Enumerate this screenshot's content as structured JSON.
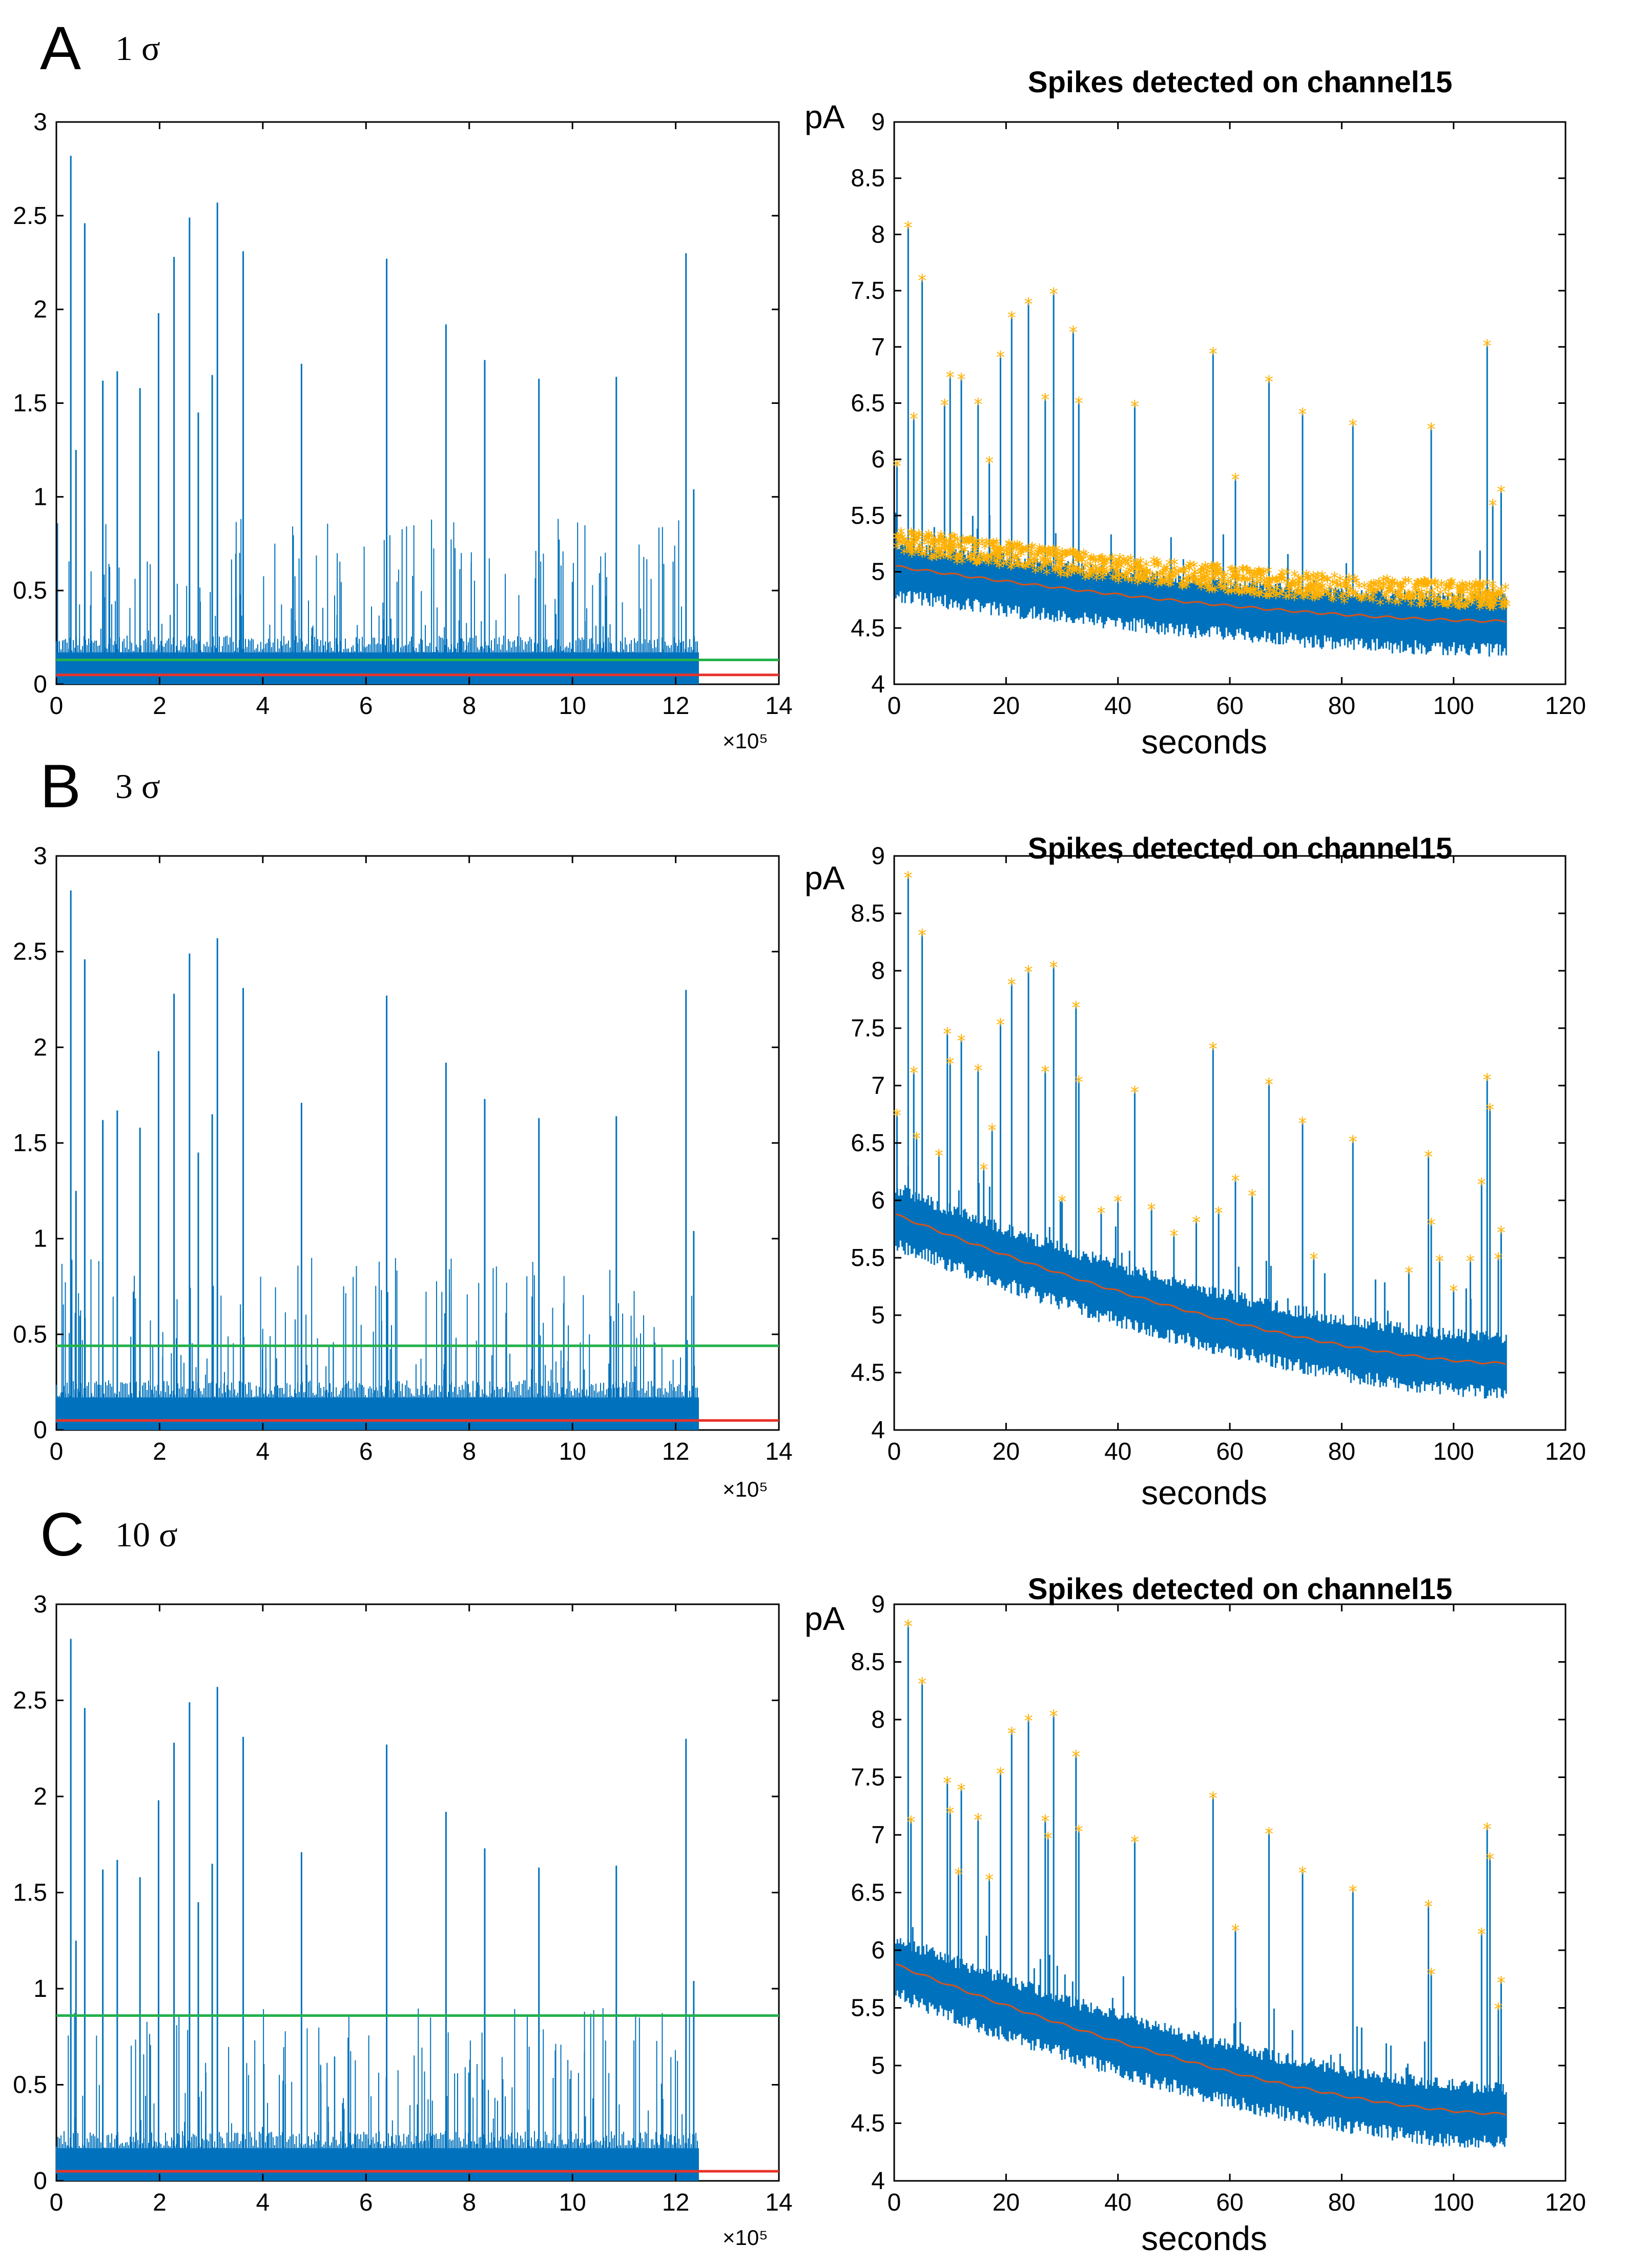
{
  "colors": {
    "trace": "#0072bd",
    "threshold": "#22b14c",
    "noise_level": "#e8322a",
    "trend": "#d95319",
    "spike_marker": "#ffb000"
  },
  "chart_data": [
    {
      "panel": "A",
      "panel_letter": "A",
      "sigma_label": "1 σ",
      "left": {
        "type": "line",
        "xlim": [
          0,
          14
        ],
        "ylim": [
          0,
          3
        ],
        "x_ticks": [
          "0",
          "2",
          "4",
          "6",
          "8",
          "10",
          "12",
          "14"
        ],
        "y_ticks": [
          "0",
          "0.5",
          "1",
          "1.5",
          "2",
          "2.5",
          "3"
        ],
        "x_exponent_label": "×10⁵",
        "signal_end_x": 12.45,
        "baseline_band": [
          0.0,
          0.17
        ],
        "threshold": 0.13,
        "noise_level": 0.05,
        "spike_peaks": [
          {
            "x": 0.28,
            "y": 2.82
          },
          {
            "x": 0.38,
            "y": 1.25
          },
          {
            "x": 0.55,
            "y": 2.46
          },
          {
            "x": 0.9,
            "y": 1.62
          },
          {
            "x": 1.18,
            "y": 1.67
          },
          {
            "x": 1.62,
            "y": 1.58
          },
          {
            "x": 1.98,
            "y": 1.98
          },
          {
            "x": 2.28,
            "y": 2.28
          },
          {
            "x": 2.58,
            "y": 2.49
          },
          {
            "x": 2.75,
            "y": 1.45
          },
          {
            "x": 3.02,
            "y": 1.65
          },
          {
            "x": 3.12,
            "y": 2.57
          },
          {
            "x": 3.62,
            "y": 2.31
          },
          {
            "x": 4.75,
            "y": 1.71
          },
          {
            "x": 6.4,
            "y": 2.27
          },
          {
            "x": 7.55,
            "y": 1.92
          },
          {
            "x": 8.3,
            "y": 1.73
          },
          {
            "x": 9.35,
            "y": 1.63
          },
          {
            "x": 10.85,
            "y": 1.64
          },
          {
            "x": 12.2,
            "y": 2.3
          },
          {
            "x": 12.35,
            "y": 1.04
          }
        ]
      },
      "right": {
        "type": "line",
        "title": "Spikes detected on channel15",
        "ylabel": "pA",
        "xlabel": "seconds",
        "xlim": [
          0,
          120
        ],
        "ylim": [
          4,
          9
        ],
        "x_ticks": [
          "0",
          "20",
          "40",
          "60",
          "80",
          "100",
          "120"
        ],
        "y_ticks": [
          "4",
          "4.5",
          "5",
          "5.5",
          "6",
          "6.5",
          "7",
          "7.5",
          "8",
          "8.5",
          "9"
        ],
        "signal_end_x": 109.5,
        "trend_start": 5.05,
        "trend_end": 4.56,
        "band_below": 0.32,
        "band_above": 0.25,
        "detected_spikes": [
          {
            "x": 0.5,
            "y": 5.95
          },
          {
            "x": 2.5,
            "y": 8.07
          },
          {
            "x": 3.5,
            "y": 6.37
          },
          {
            "x": 5.0,
            "y": 7.6
          },
          {
            "x": 9.0,
            "y": 6.49
          },
          {
            "x": 10.0,
            "y": 6.74
          },
          {
            "x": 12.0,
            "y": 6.72
          },
          {
            "x": 15.0,
            "y": 6.5
          },
          {
            "x": 17.0,
            "y": 5.98
          },
          {
            "x": 19.0,
            "y": 6.92
          },
          {
            "x": 21.0,
            "y": 7.27
          },
          {
            "x": 24.0,
            "y": 7.39
          },
          {
            "x": 27.0,
            "y": 6.54
          },
          {
            "x": 28.5,
            "y": 7.48
          },
          {
            "x": 32.0,
            "y": 7.14
          },
          {
            "x": 33.0,
            "y": 6.51
          },
          {
            "x": 43.0,
            "y": 6.48
          },
          {
            "x": 57.0,
            "y": 6.95
          },
          {
            "x": 61.0,
            "y": 5.83
          },
          {
            "x": 67.0,
            "y": 6.7
          },
          {
            "x": 73.0,
            "y": 6.41
          },
          {
            "x": 82.0,
            "y": 6.31
          },
          {
            "x": 96.0,
            "y": 6.28
          },
          {
            "x": 106.0,
            "y": 7.02
          },
          {
            "x": 107.0,
            "y": 5.6
          },
          {
            "x": 108.5,
            "y": 5.72
          }
        ]
      }
    },
    {
      "panel": "B",
      "panel_letter": "B",
      "sigma_label": "3 σ",
      "left": {
        "type": "line",
        "xlim": [
          0,
          14
        ],
        "ylim": [
          0,
          3
        ],
        "x_ticks": [
          "0",
          "2",
          "4",
          "6",
          "8",
          "10",
          "12",
          "14"
        ],
        "y_ticks": [
          "0",
          "0.5",
          "1",
          "1.5",
          "2",
          "2.5",
          "3"
        ],
        "x_exponent_label": "×10⁵",
        "signal_end_x": 12.45,
        "baseline_band": [
          0.0,
          0.17
        ],
        "threshold": 0.44,
        "noise_level": 0.05,
        "spike_peaks": [
          {
            "x": 0.28,
            "y": 2.82
          },
          {
            "x": 0.38,
            "y": 1.25
          },
          {
            "x": 0.55,
            "y": 2.46
          },
          {
            "x": 0.9,
            "y": 1.62
          },
          {
            "x": 1.18,
            "y": 1.67
          },
          {
            "x": 1.62,
            "y": 1.58
          },
          {
            "x": 1.98,
            "y": 1.98
          },
          {
            "x": 2.28,
            "y": 2.28
          },
          {
            "x": 2.58,
            "y": 2.49
          },
          {
            "x": 2.75,
            "y": 1.45
          },
          {
            "x": 3.02,
            "y": 1.65
          },
          {
            "x": 3.12,
            "y": 2.57
          },
          {
            "x": 3.62,
            "y": 2.31
          },
          {
            "x": 4.75,
            "y": 1.71
          },
          {
            "x": 6.4,
            "y": 2.27
          },
          {
            "x": 7.55,
            "y": 1.92
          },
          {
            "x": 8.3,
            "y": 1.73
          },
          {
            "x": 9.35,
            "y": 1.63
          },
          {
            "x": 10.85,
            "y": 1.64
          },
          {
            "x": 12.2,
            "y": 2.3
          },
          {
            "x": 12.35,
            "y": 1.04
          }
        ]
      },
      "right": {
        "type": "line",
        "title": "Spikes detected on channel15",
        "ylabel": "pA",
        "xlabel": "seconds",
        "xlim": [
          0,
          120
        ],
        "ylim": [
          4,
          9
        ],
        "x_ticks": [
          "0",
          "20",
          "40",
          "60",
          "80",
          "100",
          "120"
        ],
        "y_ticks": [
          "4",
          "4.5",
          "5",
          "5.5",
          "6",
          "6.5",
          "7",
          "7.5",
          "8",
          "8.5",
          "9"
        ],
        "signal_end_x": 109.5,
        "trend_start": 5.88,
        "trend_end": 4.58,
        "band_below": 0.32,
        "band_above": 0.28,
        "detected_spikes": [
          {
            "x": 0.5,
            "y": 6.75
          },
          {
            "x": 2.5,
            "y": 8.82
          },
          {
            "x": 3.5,
            "y": 7.12
          },
          {
            "x": 4.0,
            "y": 6.55
          },
          {
            "x": 5.0,
            "y": 8.32
          },
          {
            "x": 8.0,
            "y": 6.4
          },
          {
            "x": 9.5,
            "y": 7.46
          },
          {
            "x": 10.0,
            "y": 7.2
          },
          {
            "x": 12.0,
            "y": 7.4
          },
          {
            "x": 15.0,
            "y": 7.14
          },
          {
            "x": 16.0,
            "y": 6.28
          },
          {
            "x": 17.5,
            "y": 6.62
          },
          {
            "x": 19.0,
            "y": 7.54
          },
          {
            "x": 21.0,
            "y": 7.89
          },
          {
            "x": 24.0,
            "y": 8.0
          },
          {
            "x": 27.0,
            "y": 7.13
          },
          {
            "x": 28.5,
            "y": 8.04
          },
          {
            "x": 30.0,
            "y": 6.0
          },
          {
            "x": 32.5,
            "y": 7.69
          },
          {
            "x": 33.0,
            "y": 7.04
          },
          {
            "x": 37.0,
            "y": 5.9
          },
          {
            "x": 40.0,
            "y": 6.0
          },
          {
            "x": 43.0,
            "y": 6.95
          },
          {
            "x": 46.0,
            "y": 5.93
          },
          {
            "x": 50.0,
            "y": 5.7
          },
          {
            "x": 54.0,
            "y": 5.82
          },
          {
            "x": 57.0,
            "y": 7.33
          },
          {
            "x": 58.0,
            "y": 5.9
          },
          {
            "x": 61.0,
            "y": 6.18
          },
          {
            "x": 64.0,
            "y": 6.05
          },
          {
            "x": 67.0,
            "y": 7.02
          },
          {
            "x": 73.0,
            "y": 6.68
          },
          {
            "x": 75.0,
            "y": 5.5
          },
          {
            "x": 82.0,
            "y": 6.52
          },
          {
            "x": 92.0,
            "y": 5.38
          },
          {
            "x": 95.5,
            "y": 6.39
          },
          {
            "x": 96.0,
            "y": 5.8
          },
          {
            "x": 97.5,
            "y": 5.48
          },
          {
            "x": 100.0,
            "y": 5.22
          },
          {
            "x": 103.0,
            "y": 5.48
          },
          {
            "x": 105.0,
            "y": 6.15
          },
          {
            "x": 106.0,
            "y": 7.06
          },
          {
            "x": 106.5,
            "y": 6.8
          },
          {
            "x": 108.0,
            "y": 5.5
          },
          {
            "x": 108.5,
            "y": 5.73
          }
        ]
      }
    },
    {
      "panel": "C",
      "panel_letter": "C",
      "sigma_label": "10 σ",
      "left": {
        "type": "line",
        "xlim": [
          0,
          14
        ],
        "ylim": [
          0,
          3
        ],
        "x_ticks": [
          "0",
          "2",
          "4",
          "6",
          "8",
          "10",
          "12",
          "14"
        ],
        "y_ticks": [
          "0",
          "0.5",
          "1",
          "1.5",
          "2",
          "2.5",
          "3"
        ],
        "x_exponent_label": "×10⁵",
        "signal_end_x": 12.45,
        "baseline_band": [
          0.0,
          0.17
        ],
        "threshold": 0.86,
        "noise_level": 0.05,
        "spike_peaks": [
          {
            "x": 0.28,
            "y": 2.82
          },
          {
            "x": 0.38,
            "y": 1.25
          },
          {
            "x": 0.55,
            "y": 2.46
          },
          {
            "x": 0.9,
            "y": 1.62
          },
          {
            "x": 1.18,
            "y": 1.67
          },
          {
            "x": 1.62,
            "y": 1.58
          },
          {
            "x": 1.98,
            "y": 1.98
          },
          {
            "x": 2.28,
            "y": 2.28
          },
          {
            "x": 2.58,
            "y": 2.49
          },
          {
            "x": 2.75,
            "y": 1.45
          },
          {
            "x": 3.02,
            "y": 1.65
          },
          {
            "x": 3.12,
            "y": 2.57
          },
          {
            "x": 3.62,
            "y": 2.31
          },
          {
            "x": 4.75,
            "y": 1.71
          },
          {
            "x": 6.4,
            "y": 2.27
          },
          {
            "x": 7.55,
            "y": 1.92
          },
          {
            "x": 8.3,
            "y": 1.73
          },
          {
            "x": 9.35,
            "y": 1.63
          },
          {
            "x": 10.85,
            "y": 1.64
          },
          {
            "x": 12.2,
            "y": 2.3
          },
          {
            "x": 12.35,
            "y": 1.04
          }
        ]
      },
      "right": {
        "type": "line",
        "title": "Spikes detected on channel15",
        "ylabel": "pA",
        "xlabel": "seconds",
        "xlim": [
          0,
          120
        ],
        "ylim": [
          4,
          9
        ],
        "x_ticks": [
          "0",
          "20",
          "40",
          "60",
          "80",
          "100",
          "120"
        ],
        "y_ticks": [
          "4",
          "4.5",
          "5",
          "5.5",
          "6",
          "6.5",
          "7",
          "7.5",
          "8",
          "8.5",
          "9"
        ],
        "signal_end_x": 109.5,
        "trend_start": 5.88,
        "trend_end": 4.58,
        "band_below": 0.32,
        "band_above": 0.28,
        "detected_spikes": [
          {
            "x": 2.5,
            "y": 8.82
          },
          {
            "x": 3.0,
            "y": 7.12
          },
          {
            "x": 5.0,
            "y": 8.32
          },
          {
            "x": 9.5,
            "y": 7.46
          },
          {
            "x": 10.0,
            "y": 7.2
          },
          {
            "x": 11.5,
            "y": 6.67
          },
          {
            "x": 12.0,
            "y": 7.4
          },
          {
            "x": 15.0,
            "y": 7.14
          },
          {
            "x": 17.0,
            "y": 6.62
          },
          {
            "x": 19.0,
            "y": 7.54
          },
          {
            "x": 21.0,
            "y": 7.89
          },
          {
            "x": 24.0,
            "y": 8.0
          },
          {
            "x": 27.0,
            "y": 7.13
          },
          {
            "x": 27.5,
            "y": 6.98
          },
          {
            "x": 28.5,
            "y": 8.04
          },
          {
            "x": 32.5,
            "y": 7.69
          },
          {
            "x": 33.0,
            "y": 7.04
          },
          {
            "x": 43.0,
            "y": 6.95
          },
          {
            "x": 57.0,
            "y": 7.33
          },
          {
            "x": 61.0,
            "y": 6.18
          },
          {
            "x": 67.0,
            "y": 7.02
          },
          {
            "x": 73.0,
            "y": 6.68
          },
          {
            "x": 82.0,
            "y": 6.52
          },
          {
            "x": 95.5,
            "y": 6.39
          },
          {
            "x": 96.0,
            "y": 5.8
          },
          {
            "x": 105.0,
            "y": 6.15
          },
          {
            "x": 106.0,
            "y": 7.06
          },
          {
            "x": 106.5,
            "y": 6.8
          },
          {
            "x": 108.0,
            "y": 5.5
          },
          {
            "x": 108.5,
            "y": 5.73
          }
        ]
      }
    }
  ]
}
